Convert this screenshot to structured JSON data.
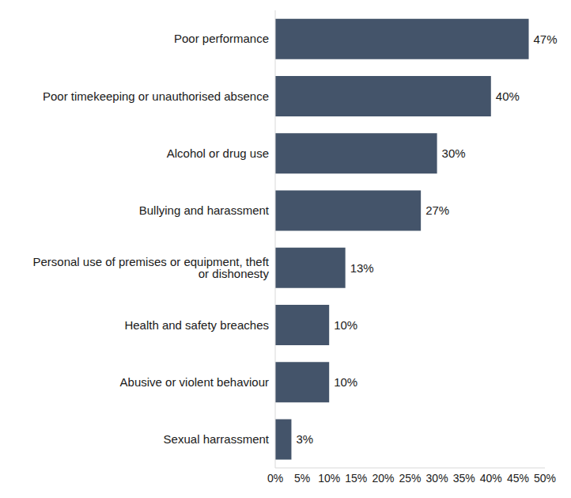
{
  "chart_data": {
    "type": "bar",
    "orientation": "horizontal",
    "categories": [
      "Poor performance",
      "Poor timekeeping or unauthorised absence",
      "Alcohol or drug use",
      "Bullying and harassment",
      "Personal use of premises or equipment, theft or dishonesty",
      "Health and safety breaches",
      "Abusive or violent behaviour",
      "Sexual harrassment"
    ],
    "values": [
      47,
      40,
      30,
      27,
      13,
      10,
      10,
      3
    ],
    "value_labels": [
      "47%",
      "40%",
      "30%",
      "27%",
      "13%",
      "10%",
      "10%",
      "3%"
    ],
    "data_labels": true,
    "color": "#44546a",
    "xlim": [
      0,
      50
    ],
    "xticks": [
      {
        "value": 0,
        "label": "0%"
      },
      {
        "value": 5,
        "label": "5%"
      },
      {
        "value": 10,
        "label": "10%"
      },
      {
        "value": 15,
        "label": "15%"
      },
      {
        "value": 20,
        "label": "20%"
      },
      {
        "value": 25,
        "label": "25%"
      },
      {
        "value": 30,
        "label": "30%"
      },
      {
        "value": 35,
        "label": "35%"
      },
      {
        "value": 40,
        "label": "40%"
      },
      {
        "value": 45,
        "label": "45%"
      },
      {
        "value": 50,
        "label": "50%"
      }
    ],
    "grid": false
  }
}
